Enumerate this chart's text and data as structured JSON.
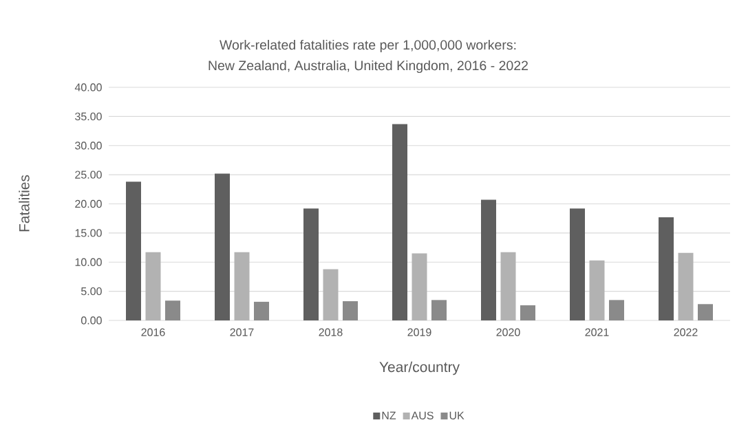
{
  "chart_data": {
    "type": "bar",
    "title": "Work-related fatalities rate per 1,000,000 workers:\nNew Zealand, Australia, United Kingdom, 2016 - 2022",
    "xlabel": "Year/country",
    "ylabel": "Fatalities",
    "categories": [
      "2016",
      "2017",
      "2018",
      "2019",
      "2020",
      "2021",
      "2022"
    ],
    "series": [
      {
        "name": "NZ",
        "color": "#5f5f5f",
        "values": [
          23.8,
          25.2,
          19.2,
          33.7,
          20.7,
          19.2,
          17.7
        ]
      },
      {
        "name": "AUS",
        "color": "#b2b2b2",
        "values": [
          11.7,
          11.7,
          8.8,
          11.5,
          11.7,
          10.3,
          11.6
        ]
      },
      {
        "name": "UK",
        "color": "#8a8a8a",
        "values": [
          3.4,
          3.2,
          3.3,
          3.5,
          2.6,
          3.5,
          2.8
        ]
      }
    ],
    "ylim": [
      0,
      40
    ],
    "yticks": [
      {
        "value": 0,
        "label": "0.00"
      },
      {
        "value": 5,
        "label": "5.00"
      },
      {
        "value": 10,
        "label": "10.00"
      },
      {
        "value": 15,
        "label": "15.00"
      },
      {
        "value": 20,
        "label": "20.00"
      },
      {
        "value": 25,
        "label": "25.00"
      },
      {
        "value": 30,
        "label": "30.00"
      },
      {
        "value": 35,
        "label": "35.00"
      },
      {
        "value": 40,
        "label": "40.00"
      }
    ],
    "grid": "y",
    "legend": "bottom"
  }
}
